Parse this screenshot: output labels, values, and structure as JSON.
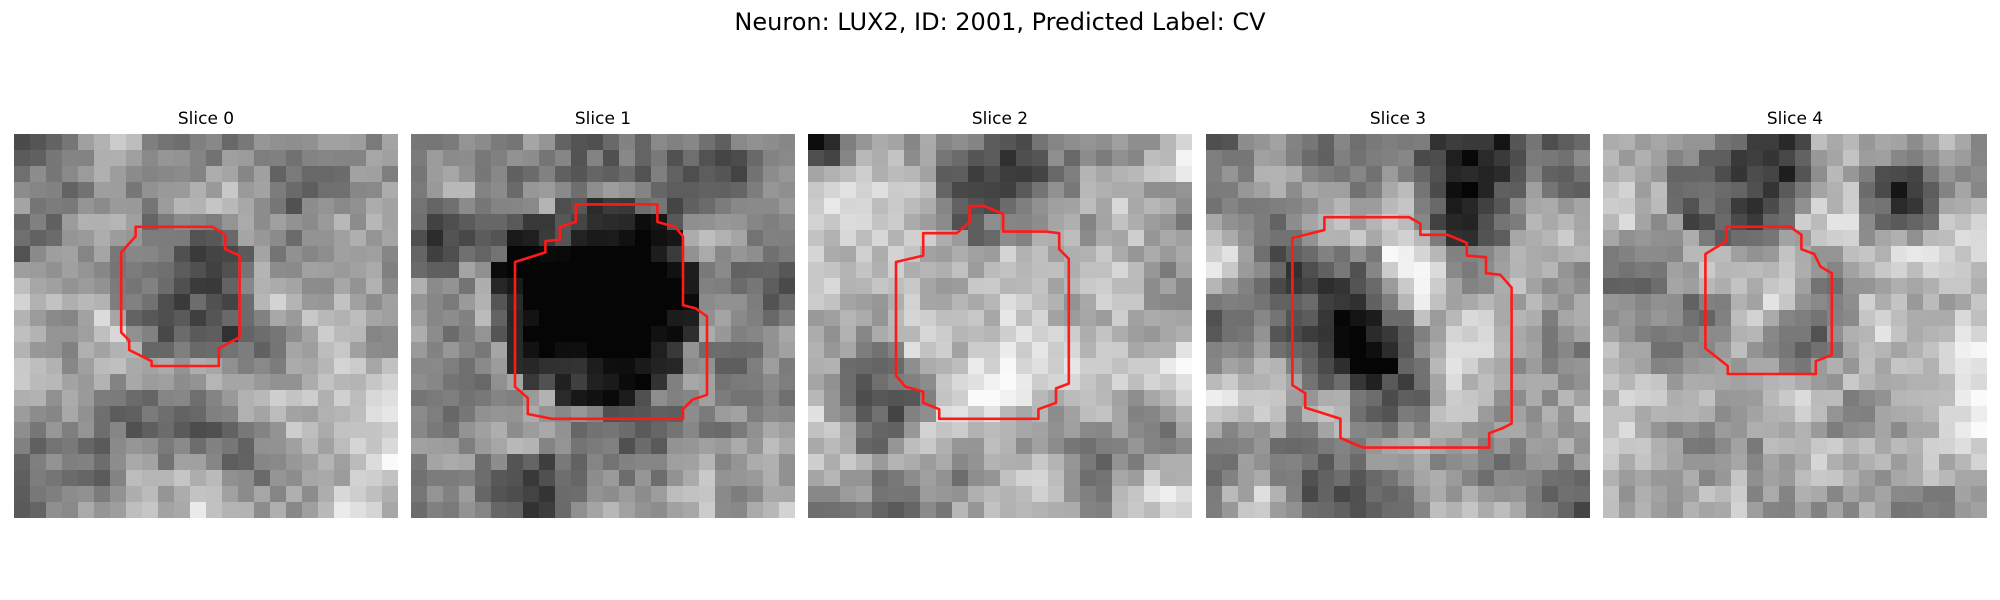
{
  "figure": {
    "title": "Neuron: LUX2, ID: 2001, Predicted Label: CV"
  },
  "panels": [
    {
      "title": "Slice 0"
    },
    {
      "title": "Slice 1"
    },
    {
      "title": "Slice 2"
    },
    {
      "title": "Slice 3"
    },
    {
      "title": "Slice 4"
    }
  ],
  "colors": {
    "contour": "#ff1a1a",
    "background": "#ffffff"
  }
}
